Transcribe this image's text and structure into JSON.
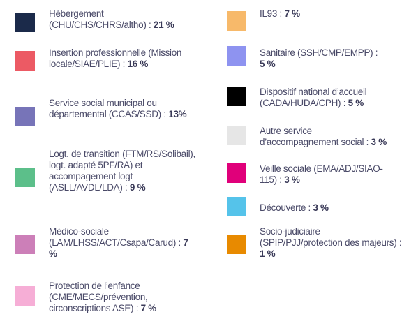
{
  "legend": {
    "items": [
      {
        "label": "Hébergement (CHU/CHS/CHRS/altho) :",
        "value": "21 %",
        "color": "#1b2a4a"
      },
      {
        "label": "Insertion professionnelle (Mission locale/SIAE/PLIE) :",
        "value": "16 %",
        "color": "#ec5a64"
      },
      {
        "label": "Service social municipal ou départemental (CCAS/SSD) :",
        "value": "13%",
        "color": "#7774b8"
      },
      {
        "label": "Logt. de transition (FTM/RS/Solibail), logt. adapté 5PF/RA) et accompagement logt (ASLL/AVDL/LDA) :",
        "value": "9 %",
        "color": "#5cbf8a"
      },
      {
        "label": "Médico-sociale (LAM/LHSS/ACT/Csapa/Carud) :",
        "value": "7 %",
        "color": "#cc7fb8"
      },
      {
        "label": "Protection de l’enfance (CME/MECS/prévention, circonscriptions ASE) :",
        "value": "7 %",
        "color": "#f6aed6"
      },
      {
        "label": "IL93 :",
        "value": "7 %",
        "color": "#f7b96a"
      },
      {
        "label": "Sanitaire (SSH/CMP/EMPP) :",
        "value": "5 %",
        "color": "#8e93f0"
      },
      {
        "label": "Dispositif national d’accueil (CADA/HUDA/CPH) :",
        "value": "5 %",
        "color": "#000000"
      },
      {
        "label": "Autre service d’accompagnement social :",
        "value": "3 %",
        "color": "#e6e6e6"
      },
      {
        "label": "Veille sociale (EMA/ADJ/SIAO-115) :",
        "value": "3 %",
        "color": "#e0007a"
      },
      {
        "label": "Découverte :",
        "value": "3 %",
        "color": "#55c3ea"
      },
      {
        "label": "Socio-judiciaire (SPIP/PJJ/protection des majeurs) :",
        "value": "1 %",
        "color": "#e88a00"
      }
    ]
  }
}
